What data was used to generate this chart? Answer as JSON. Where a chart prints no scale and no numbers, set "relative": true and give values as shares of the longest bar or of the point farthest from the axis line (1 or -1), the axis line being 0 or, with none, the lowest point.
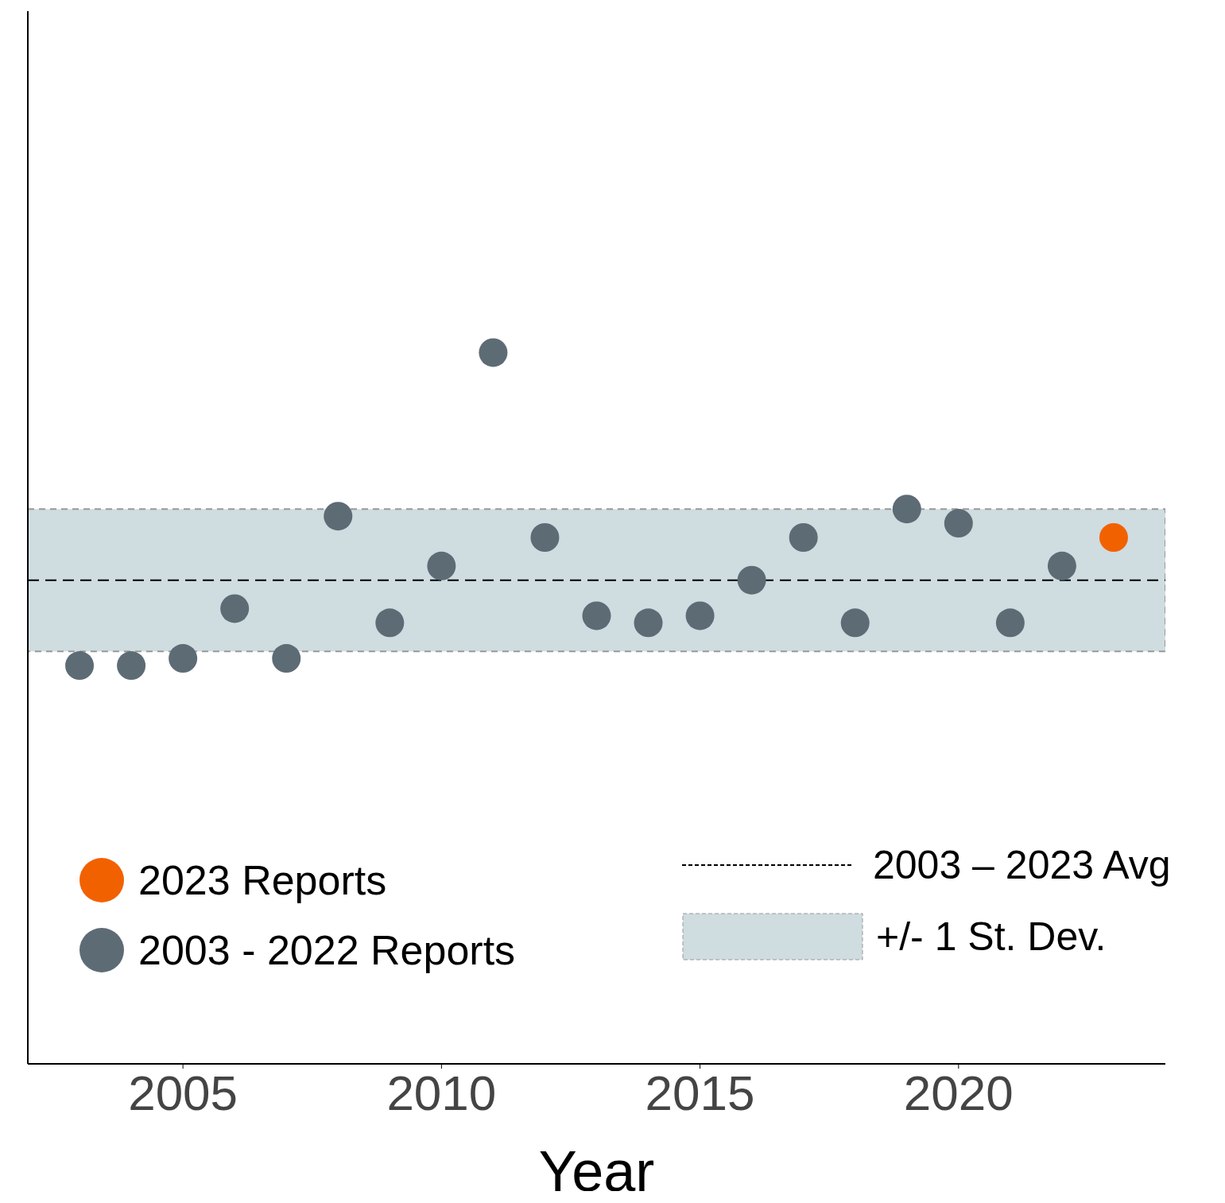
{
  "chart_data": {
    "type": "scatter",
    "xlabel": "Year",
    "relative": true,
    "xlim": [
      2002,
      2024
    ],
    "xticks": [
      2005,
      2010,
      2015,
      2020
    ],
    "tick_labels": "x",
    "marker": "circle",
    "grid": false,
    "legend": "bottom",
    "series": [
      {
        "name": "2003 - 2022 Reports",
        "color": "#5d6b75",
        "x": [
          2003,
          2004,
          2005,
          2006,
          2007,
          2008,
          2009,
          2010,
          2011,
          2012,
          2013,
          2014,
          2015,
          2016,
          2017,
          2018,
          2019,
          2020,
          2021,
          2022
        ],
        "values": [
          0.56,
          0.56,
          0.57,
          0.64,
          0.57,
          0.77,
          0.62,
          0.7,
          1.0,
          0.74,
          0.63,
          0.62,
          0.63,
          0.68,
          0.74,
          0.62,
          0.78,
          0.76,
          0.62,
          0.7
        ]
      },
      {
        "name": "2023 Reports",
        "color": "#f26100",
        "x": [
          2023
        ],
        "values": [
          0.74
        ]
      }
    ],
    "ref_lines": [
      {
        "axis": "y",
        "value": 0.68,
        "label": "2003 – 2023 Avg",
        "color": "#000000",
        "line_style": "dashed"
      }
    ],
    "bands": [
      {
        "axis": "y",
        "from": 0.58,
        "to": 0.78,
        "label": "+/- 1 St. Dev.",
        "color": "#cfdce0"
      }
    ]
  }
}
